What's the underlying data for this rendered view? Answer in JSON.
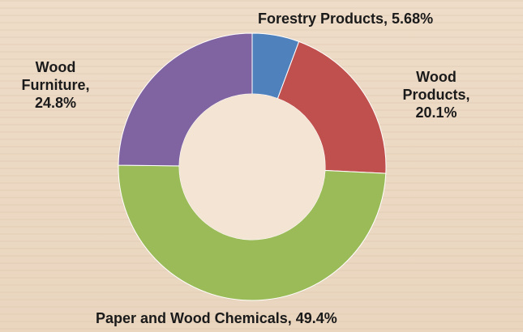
{
  "chart_data": {
    "type": "pie",
    "subtype": "donut",
    "title": "",
    "slices": [
      {
        "name": "Forestry Products",
        "value": 5.68,
        "label": "Forestry Products, 5.68%",
        "color": "#4f81bd"
      },
      {
        "name": "Wood Products",
        "value": 20.1,
        "label": "Wood Products, 20.1%",
        "color": "#c0504d"
      },
      {
        "name": "Paper and Wood Chemicals",
        "value": 49.4,
        "label": "Paper and Wood Chemicals, 49.4%",
        "color": "#9bbb59"
      },
      {
        "name": "Wood Furniture",
        "value": 24.8,
        "label": "Wood Furniture, 24.8%",
        "color": "#8064a2"
      }
    ],
    "legend": "none"
  },
  "labels": {
    "forestry": "Forestry Products, 5.68%",
    "wood_products_l1": "Wood",
    "wood_products_l2": "Products,",
    "wood_products_l3": "20.1%",
    "paper": "Paper and Wood Chemicals, 49.4%",
    "furniture_l1": "Wood",
    "furniture_l2": "Furniture,",
    "furniture_l3": "24.8%"
  }
}
